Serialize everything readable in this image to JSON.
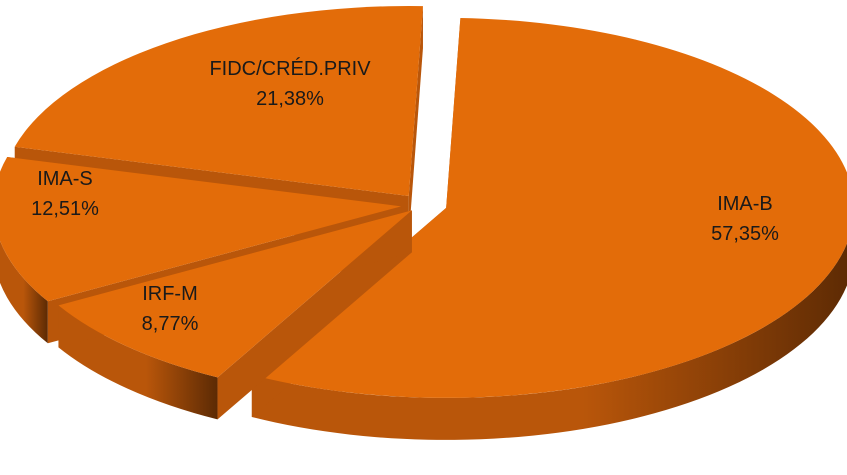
{
  "chart_data": {
    "type": "pie",
    "style": "3d-exploded",
    "title": "",
    "slices": [
      {
        "label": "IMA-B",
        "value": 57.35,
        "value_label": "57,35%"
      },
      {
        "label": "IRF-M",
        "value": 8.77,
        "value_label": "8,77%"
      },
      {
        "label": "IMA-S",
        "value": 12.51,
        "value_label": "12,51%"
      },
      {
        "label": "FIDC/CRÉD.PRIV",
        "value": 21.38,
        "value_label": "21,38%"
      }
    ],
    "colors": {
      "top": "#e36c09",
      "side_light": "#b9560a",
      "side_dark": "#5c2a04"
    }
  }
}
